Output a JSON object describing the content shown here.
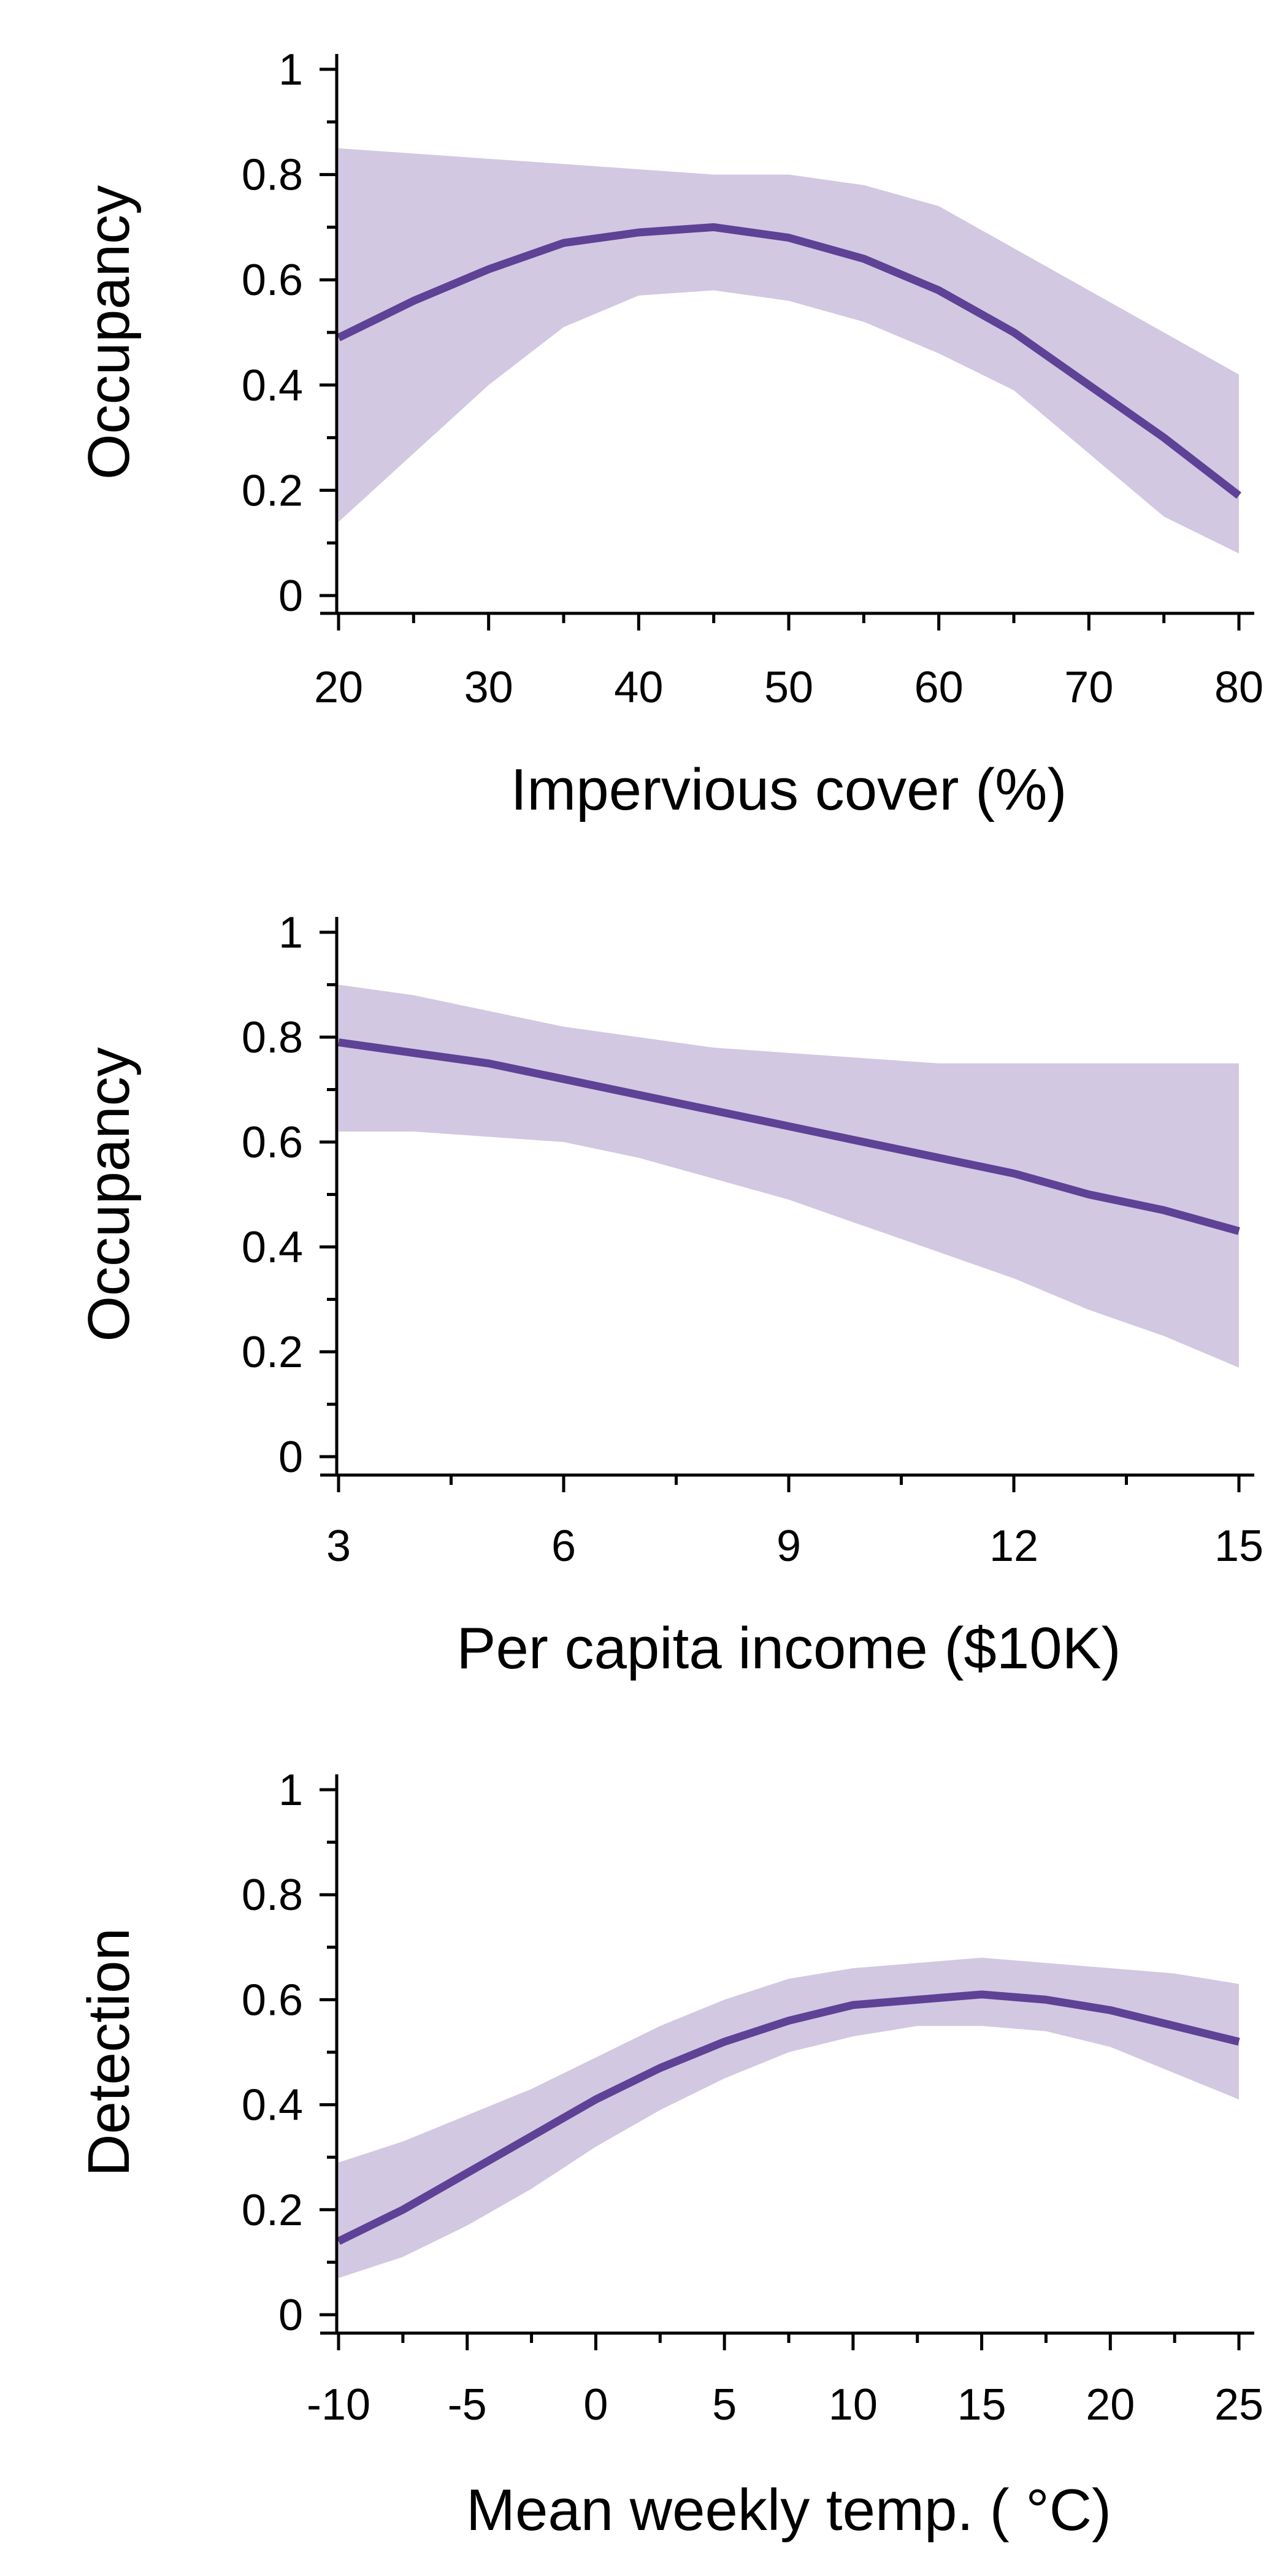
{
  "colors": {
    "line": "#5e4296",
    "band": "#d2c8e2",
    "axis": "#000000"
  },
  "chart_data": [
    {
      "type": "line",
      "xlabel": "Impervious cover (%)",
      "ylabel": "Occupancy",
      "xlim": [
        20,
        80
      ],
      "ylim": [
        0,
        1
      ],
      "xticks": [
        20,
        30,
        40,
        50,
        60,
        70,
        80
      ],
      "xtick_labels": [
        "20",
        "30",
        "40",
        "50",
        "60",
        "70",
        "80"
      ],
      "yticks": [
        0,
        0.2,
        0.4,
        0.6,
        0.8,
        1
      ],
      "ytick_labels": [
        "0",
        "0.2",
        "0.4",
        "0.6",
        "0.8",
        "1"
      ],
      "grid": false,
      "x": [
        20,
        25,
        30,
        35,
        40,
        45,
        50,
        55,
        60,
        65,
        70,
        75,
        80
      ],
      "mean": [
        0.49,
        0.56,
        0.62,
        0.67,
        0.69,
        0.7,
        0.68,
        0.64,
        0.58,
        0.5,
        0.4,
        0.3,
        0.19
      ],
      "lower": [
        0.14,
        0.27,
        0.4,
        0.51,
        0.57,
        0.58,
        0.56,
        0.52,
        0.46,
        0.39,
        0.27,
        0.15,
        0.08
      ],
      "upper": [
        0.85,
        0.84,
        0.83,
        0.82,
        0.81,
        0.8,
        0.8,
        0.78,
        0.74,
        0.66,
        0.58,
        0.5,
        0.42
      ]
    },
    {
      "type": "line",
      "xlabel": "Per capita income ($10K)",
      "ylabel": "Occupancy",
      "xlim": [
        3,
        15
      ],
      "ylim": [
        0,
        1
      ],
      "xticks": [
        3,
        6,
        9,
        12,
        15
      ],
      "xtick_labels": [
        "3",
        "6",
        "9",
        "12",
        "15"
      ],
      "yticks": [
        0,
        0.2,
        0.4,
        0.6,
        0.8,
        1
      ],
      "ytick_labels": [
        "0",
        "0.2",
        "0.4",
        "0.6",
        "0.8",
        "1"
      ],
      "grid": false,
      "x": [
        3,
        4,
        5,
        6,
        7,
        8,
        9,
        10,
        11,
        12,
        13,
        14,
        15
      ],
      "mean": [
        0.79,
        0.77,
        0.75,
        0.72,
        0.69,
        0.66,
        0.63,
        0.6,
        0.57,
        0.54,
        0.5,
        0.47,
        0.43
      ],
      "lower": [
        0.62,
        0.62,
        0.61,
        0.6,
        0.57,
        0.53,
        0.49,
        0.44,
        0.39,
        0.34,
        0.28,
        0.23,
        0.17
      ],
      "upper": [
        0.9,
        0.88,
        0.85,
        0.82,
        0.8,
        0.78,
        0.77,
        0.76,
        0.75,
        0.75,
        0.75,
        0.75,
        0.75
      ]
    },
    {
      "type": "line",
      "xlabel": "Mean weekly temp. ( °C)",
      "ylabel": "Detection",
      "xlim": [
        -10,
        25
      ],
      "ylim": [
        0,
        1
      ],
      "xticks": [
        -10,
        -5,
        0,
        5,
        10,
        15,
        20,
        25
      ],
      "xtick_labels": [
        "-10",
        "-5",
        "0",
        "5",
        "10",
        "15",
        "20",
        "25"
      ],
      "yticks": [
        0,
        0.2,
        0.4,
        0.6,
        0.8,
        1
      ],
      "ytick_labels": [
        "0",
        "0.2",
        "0.4",
        "0.6",
        "0.8",
        "1"
      ],
      "grid": false,
      "x": [
        -10,
        -7.5,
        -5,
        -2.5,
        0,
        2.5,
        5,
        7.5,
        10,
        12.5,
        15,
        17.5,
        20,
        22.5,
        25
      ],
      "mean": [
        0.14,
        0.2,
        0.27,
        0.34,
        0.41,
        0.47,
        0.52,
        0.56,
        0.59,
        0.6,
        0.61,
        0.6,
        0.58,
        0.55,
        0.52
      ],
      "lower": [
        0.07,
        0.11,
        0.17,
        0.24,
        0.32,
        0.39,
        0.45,
        0.5,
        0.53,
        0.55,
        0.55,
        0.54,
        0.51,
        0.46,
        0.41
      ],
      "upper": [
        0.29,
        0.33,
        0.38,
        0.43,
        0.49,
        0.55,
        0.6,
        0.64,
        0.66,
        0.67,
        0.68,
        0.67,
        0.66,
        0.65,
        0.63
      ]
    }
  ]
}
